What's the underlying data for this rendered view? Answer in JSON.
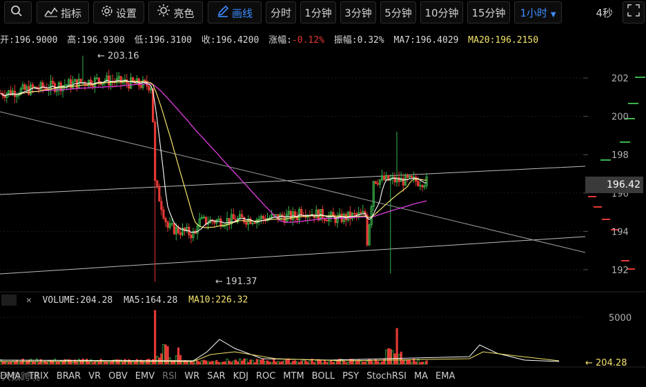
{
  "toolbar": {
    "search_icon": "search-icon",
    "indicators_label": "指标",
    "settings_label": "设置",
    "theme_label": "亮色",
    "draw_label": "画线",
    "periods": [
      "分时",
      "1分钟",
      "3分钟",
      "5分钟",
      "10分钟",
      "15分钟"
    ],
    "active_period": "1小时",
    "timer": "4秒",
    "fullscreen_icon": "fullscreen-icon"
  },
  "info": {
    "open": "开:196.9000",
    "high": "高:196.9300",
    "low": "低:196.3100",
    "close": "收:196.4200",
    "change_label": "涨幅:",
    "change_value": "-0.12%",
    "amplitude": "振幅:0.32%",
    "ma7": "MA7:196.4029",
    "ma20": "MA20:196.2150"
  },
  "chart_data": {
    "type": "candlestick",
    "price_axis": {
      "ticks": [
        "202",
        "200",
        "198",
        "196",
        "194",
        "192"
      ]
    },
    "last_price": "196.42",
    "annotations": {
      "high": "← 203.16",
      "low": "← 191.37"
    },
    "volume": {
      "label": "VOLUME:204.28",
      "ma5": "MA5:164.28",
      "ma10": "MA10:226.32",
      "axis_tick": "5000",
      "last": "← 204.28"
    },
    "colors": {
      "up": "#39b54a",
      "down": "#e53935",
      "ma7": "#ffffff",
      "ma20": "#f5e56b",
      "ma_long": "#d43ad4"
    }
  },
  "indicators": [
    "DMA",
    "TRIX",
    "BRAR",
    "VR",
    "OBV",
    "EMV",
    "RSI",
    "WR",
    "SAR",
    "KDJ",
    "ROC",
    "MTM",
    "BOLL",
    "PSY",
    "StochRSI",
    "MA",
    "EMA"
  ],
  "watermark": "大数跨境"
}
